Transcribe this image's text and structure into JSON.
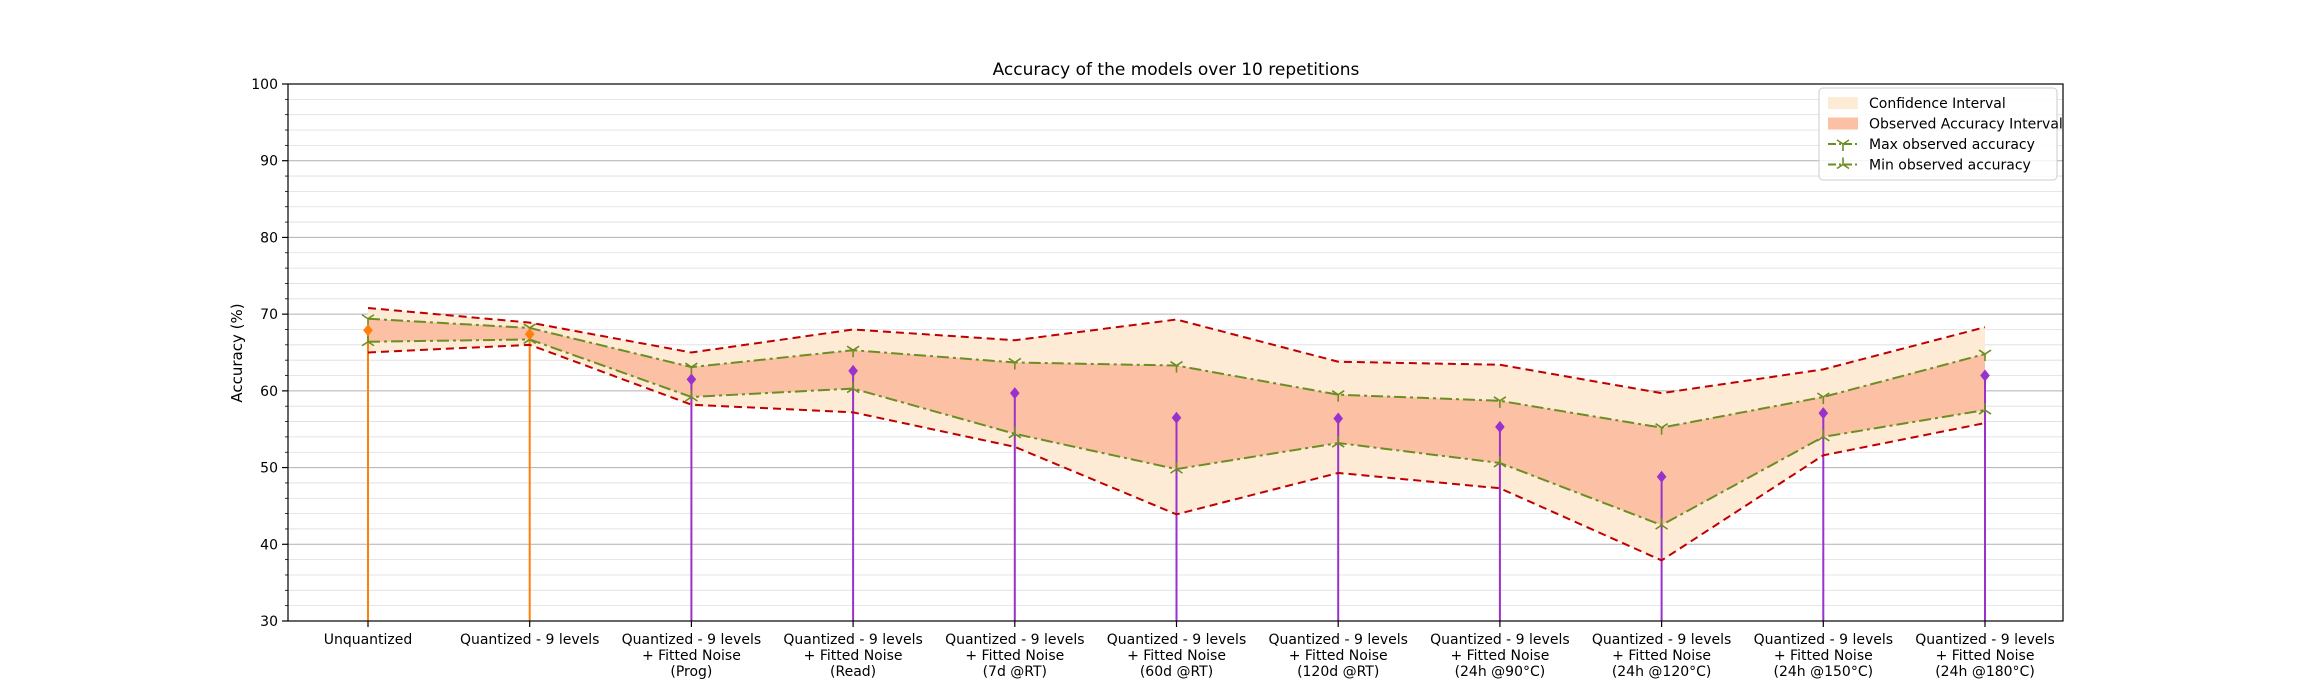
{
  "chart_data": {
    "type": "line",
    "title": "Accuracy of the models over 10 repetitions",
    "xlabel": "",
    "ylabel": "Accuracy (%)",
    "ylim": [
      30,
      100
    ],
    "yticks": [
      30,
      40,
      50,
      60,
      70,
      80,
      90,
      100
    ],
    "grid": "horizontal major and minor",
    "legend_position": "top-right",
    "categories": [
      [
        "Unquantized"
      ],
      [
        "Quantized - 9 levels"
      ],
      [
        "Quantized - 9 levels",
        "+ Fitted Noise",
        "(Prog)"
      ],
      [
        "Quantized - 9 levels",
        "+ Fitted Noise",
        "(Read)"
      ],
      [
        "Quantized - 9 levels",
        "+ Fitted Noise",
        "(7d @RT)"
      ],
      [
        "Quantized - 9 levels",
        "+ Fitted Noise",
        "(60d @RT)"
      ],
      [
        "Quantized - 9 levels",
        "+ Fitted Noise",
        "(120d @RT)"
      ],
      [
        "Quantized - 9 levels",
        "+ Fitted Noise",
        "(24h @90°C)"
      ],
      [
        "Quantized - 9 levels",
        "+ Fitted Noise",
        "(24h @120°C)"
      ],
      [
        "Quantized - 9 levels",
        "+ Fitted Noise",
        "(24h @150°C)"
      ],
      [
        "Quantized - 9 levels",
        "+ Fitted Noise",
        "(24h @180°C)"
      ]
    ],
    "legend": [
      {
        "label": "Confidence Interval",
        "kind": "fill",
        "color": "#fdebd5"
      },
      {
        "label": "Observed Accuracy Interval",
        "kind": "fill",
        "color": "#fcc0a4"
      },
      {
        "label": "Max observed accuracy",
        "kind": "line",
        "color": "#6b8e23"
      },
      {
        "label": "Min observed accuracy",
        "kind": "line",
        "color": "#6b8e23"
      }
    ],
    "series": [
      {
        "name": "Confidence Interval upper",
        "role": "ci_upper",
        "color": "#c00000",
        "values": [
          70.8,
          68.9,
          65.0,
          68.0,
          66.6,
          69.3,
          63.8,
          63.4,
          59.7,
          62.8,
          68.3
        ]
      },
      {
        "name": "Confidence Interval lower",
        "role": "ci_lower",
        "color": "#c00000",
        "values": [
          65.0,
          66.0,
          58.2,
          57.2,
          52.7,
          43.9,
          49.3,
          47.3,
          37.9,
          51.6,
          55.8
        ]
      },
      {
        "name": "Max observed accuracy",
        "role": "max",
        "color": "#6b8e23",
        "values": [
          69.4,
          68.2,
          63.1,
          65.3,
          63.7,
          63.3,
          59.5,
          58.7,
          55.2,
          59.2,
          64.8
        ]
      },
      {
        "name": "Min observed accuracy",
        "role": "min",
        "color": "#6b8e23",
        "values": [
          66.4,
          66.7,
          59.2,
          60.3,
          54.4,
          49.8,
          53.2,
          50.6,
          42.5,
          54.0,
          57.5
        ]
      },
      {
        "name": "Mean accuracy",
        "role": "mean",
        "values": [
          67.9,
          67.4,
          61.5,
          62.6,
          59.7,
          56.5,
          56.4,
          55.3,
          48.8,
          57.1,
          62.0
        ],
        "colors": [
          "#ff7f0e",
          "#ff7f0e",
          "#9932cc",
          "#9932cc",
          "#9932cc",
          "#9932cc",
          "#9932cc",
          "#9932cc",
          "#9932cc",
          "#9932cc",
          "#9932cc"
        ]
      }
    ]
  }
}
